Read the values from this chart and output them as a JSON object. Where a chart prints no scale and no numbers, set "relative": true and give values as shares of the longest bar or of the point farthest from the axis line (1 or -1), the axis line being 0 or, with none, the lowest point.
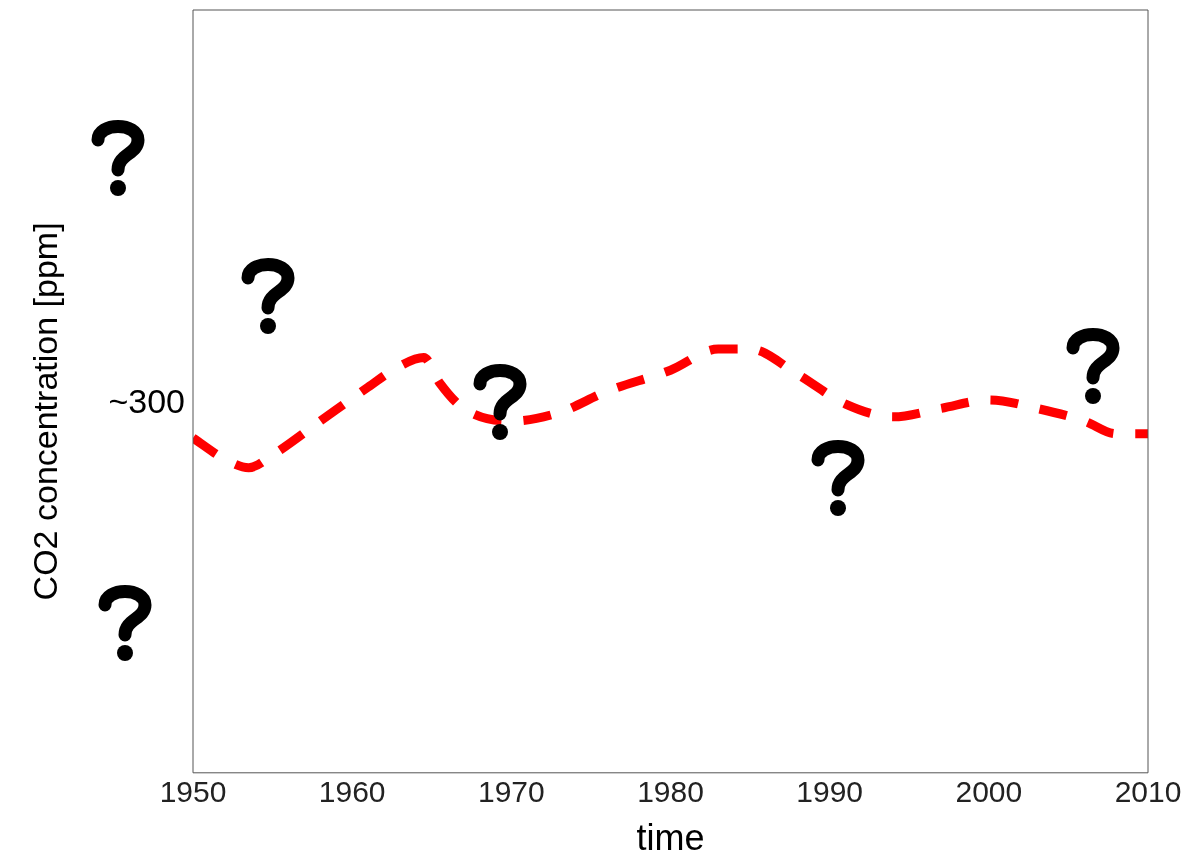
{
  "chart_data": {
    "type": "line",
    "relative": true,
    "xlabel": "time",
    "ylabel": "CO2 concentration [ppm]",
    "annotations": [
      "~300"
    ],
    "xlim": [
      1950,
      2010
    ],
    "xticks": [
      1950,
      1960,
      1970,
      1980,
      1990,
      2000,
      2010
    ],
    "grid": false,
    "marker": "none",
    "line_style": "dashed",
    "x": [
      1950,
      1952,
      1953.5,
      1955,
      1958,
      1961,
      1963,
      1964.5,
      1965.5,
      1967,
      1970,
      1973,
      1976,
      1980,
      1983,
      1985,
      1988,
      1991,
      1994,
      1997,
      2000,
      2003,
      2006,
      2008,
      2010
    ],
    "series": [
      {
        "color": "#ff0000",
        "values": [
          0.79,
          0.74,
          0.72,
          0.75,
          0.83,
          0.91,
          0.96,
          0.98,
          0.92,
          0.86,
          0.83,
          0.85,
          0.9,
          0.95,
          1,
          1,
          0.94,
          0.87,
          0.84,
          0.86,
          0.88,
          0.86,
          0.83,
          0.8,
          0.8
        ]
      }
    ]
  }
}
